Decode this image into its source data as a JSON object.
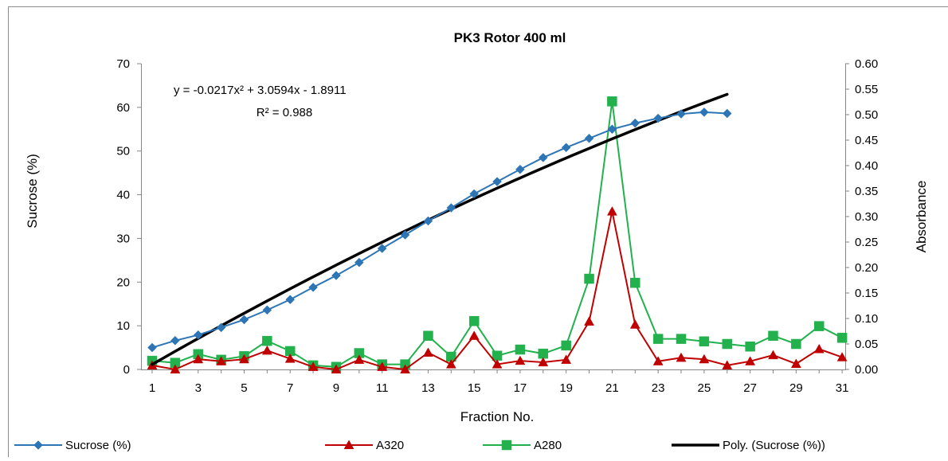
{
  "chart_data": {
    "type": "line",
    "title": "PK3 Rotor 400 ml",
    "xlabel": "Fraction No.",
    "ylabel": "Sucrose (%)",
    "y2label": "Absorbance",
    "x": [
      1,
      2,
      3,
      4,
      5,
      6,
      7,
      8,
      9,
      10,
      11,
      12,
      13,
      14,
      15,
      16,
      17,
      18,
      19,
      20,
      21,
      22,
      23,
      24,
      25,
      26,
      27,
      28,
      29,
      30,
      31
    ],
    "x_ticks": [
      "1",
      "3",
      "5",
      "7",
      "9",
      "11",
      "13",
      "15",
      "17",
      "19",
      "21",
      "23",
      "25",
      "27",
      "29",
      "31"
    ],
    "ylim": [
      0,
      70
    ],
    "y_ticks": [
      "0",
      "10",
      "20",
      "30",
      "40",
      "50",
      "60",
      "70"
    ],
    "y2lim": [
      0,
      0.6
    ],
    "y2_ticks": [
      "0.00",
      "0.05",
      "0.10",
      "0.15",
      "0.20",
      "0.25",
      "0.30",
      "0.35",
      "0.40",
      "0.45",
      "0.50",
      "0.55",
      "0.60"
    ],
    "grid": false,
    "legend_position": "bottom",
    "series": [
      {
        "name": "Sucrose (%)",
        "axis": "left",
        "marker": "diamond",
        "color": "#2e75b6",
        "x": [
          1,
          2,
          3,
          4,
          5,
          6,
          7,
          8,
          9,
          10,
          11,
          12,
          13,
          14,
          15,
          16,
          17,
          18,
          19,
          20,
          21,
          22,
          23,
          24,
          25,
          26
        ],
        "values": [
          5.0,
          6.6,
          7.9,
          9.6,
          11.4,
          13.6,
          16.0,
          18.8,
          21.5,
          24.5,
          27.7,
          30.8,
          34.0,
          37.0,
          40.2,
          43.0,
          45.8,
          48.5,
          50.8,
          52.9,
          55.0,
          56.4,
          57.5,
          58.5,
          58.9,
          58.6
        ]
      },
      {
        "name": "A320",
        "axis": "right",
        "marker": "triangle",
        "color": "#c00000",
        "x": [
          1,
          2,
          3,
          4,
          5,
          6,
          7,
          8,
          9,
          10,
          11,
          12,
          13,
          14,
          15,
          16,
          17,
          18,
          19,
          20,
          21,
          22,
          23,
          24,
          25,
          26,
          27,
          28,
          29,
          30,
          31
        ],
        "values": [
          0.008,
          0.0,
          0.02,
          0.016,
          0.02,
          0.037,
          0.021,
          0.005,
          0.0,
          0.019,
          0.005,
          0.0,
          0.033,
          0.01,
          0.066,
          0.01,
          0.017,
          0.014,
          0.019,
          0.094,
          0.31,
          0.088,
          0.016,
          0.023,
          0.02,
          0.008,
          0.016,
          0.028,
          0.011,
          0.04,
          0.024
        ]
      },
      {
        "name": "A280",
        "axis": "right",
        "marker": "square",
        "color": "#22b14c",
        "x": [
          1,
          2,
          3,
          4,
          5,
          6,
          7,
          8,
          9,
          10,
          11,
          12,
          13,
          14,
          15,
          16,
          17,
          18,
          19,
          20,
          21,
          22,
          23,
          24,
          25,
          26,
          27,
          28,
          29,
          30,
          31
        ],
        "values": [
          0.017,
          0.013,
          0.03,
          0.019,
          0.026,
          0.056,
          0.036,
          0.008,
          0.005,
          0.032,
          0.01,
          0.01,
          0.066,
          0.025,
          0.095,
          0.027,
          0.039,
          0.031,
          0.047,
          0.178,
          0.526,
          0.17,
          0.06,
          0.06,
          0.055,
          0.05,
          0.045,
          0.066,
          0.05,
          0.085,
          0.062
        ]
      },
      {
        "name": "Poly. (Sucrose (%))",
        "axis": "left",
        "type": "trendline",
        "color": "#000000",
        "coefficients": [
          -0.0217,
          3.0594,
          -1.8911
        ],
        "x_range": [
          1,
          26
        ]
      }
    ],
    "annotations": [
      {
        "id": "equation",
        "text": "y = -0.0217x² + 3.0594x - 1.8911"
      },
      {
        "id": "r2",
        "text": "R² = 0.988"
      }
    ]
  }
}
